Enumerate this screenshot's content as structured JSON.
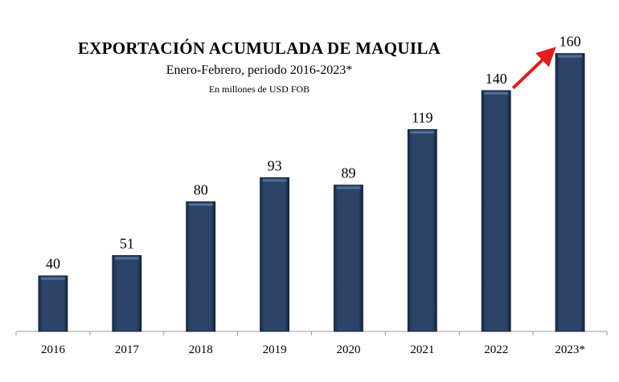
{
  "chart_data": {
    "type": "bar",
    "title": "EXPORTACIÓN ACUMULADA DE MAQUILA",
    "subtitle": "Enero-Febrero, periodo 2016-2023*",
    "unit_note": "En millones de USD FOB",
    "categories": [
      "2016",
      "2017",
      "2018",
      "2019",
      "2020",
      "2021",
      "2022",
      "2023*"
    ],
    "values": [
      40,
      51,
      80,
      93,
      89,
      119,
      140,
      160
    ],
    "ylim": [
      10,
      175
    ],
    "grid": false,
    "legend": "none",
    "bar_color": "#2b4468",
    "annotation": {
      "type": "arrow",
      "from": "2022",
      "to": "2023*",
      "color": "#e21d1d"
    }
  }
}
